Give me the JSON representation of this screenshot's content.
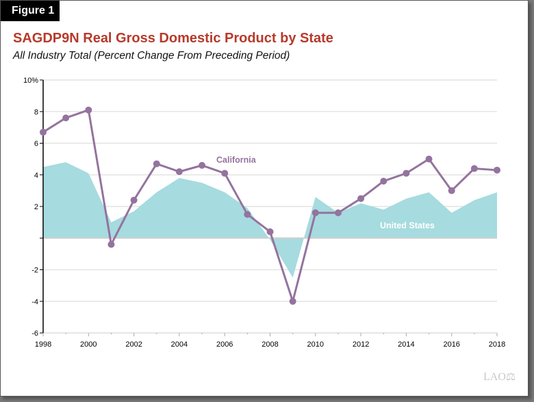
{
  "figure_label": "Figure 1",
  "logo": "LAO",
  "chart_data": {
    "type": "line",
    "title": "SAGDP9N Real Gross Domestic Product by State",
    "subtitle": "All Industry Total (Percent Change From Preceding Period)",
    "x": [
      1998,
      1999,
      2000,
      2001,
      2002,
      2003,
      2004,
      2005,
      2006,
      2007,
      2008,
      2009,
      2010,
      2011,
      2012,
      2013,
      2014,
      2015,
      2016,
      2017,
      2018
    ],
    "xticks": [
      "1998",
      "2000",
      "2002",
      "2004",
      "2006",
      "2008",
      "2010",
      "2012",
      "2014",
      "2016",
      "2018"
    ],
    "yticks": [
      "10%",
      "8",
      "6",
      "4",
      "2",
      "",
      "-2",
      "-4",
      "-6"
    ],
    "ylim": [
      -6,
      10
    ],
    "grid": true,
    "series": [
      {
        "name": "California",
        "type": "line",
        "color": "#94739e",
        "values": [
          6.7,
          7.6,
          8.1,
          -0.4,
          2.4,
          4.7,
          4.2,
          4.6,
          4.1,
          1.5,
          0.4,
          -4.0,
          1.6,
          1.6,
          2.5,
          3.6,
          4.1,
          5.0,
          3.0,
          4.4,
          4.3
        ]
      },
      {
        "name": "United States",
        "type": "area",
        "color": "#a6dbdf",
        "values": [
          4.5,
          4.8,
          4.1,
          1.0,
          1.7,
          2.9,
          3.8,
          3.5,
          2.9,
          1.9,
          -0.1,
          -2.5,
          2.6,
          1.6,
          2.2,
          1.8,
          2.5,
          2.9,
          1.6,
          2.4,
          2.9
        ]
      }
    ]
  }
}
